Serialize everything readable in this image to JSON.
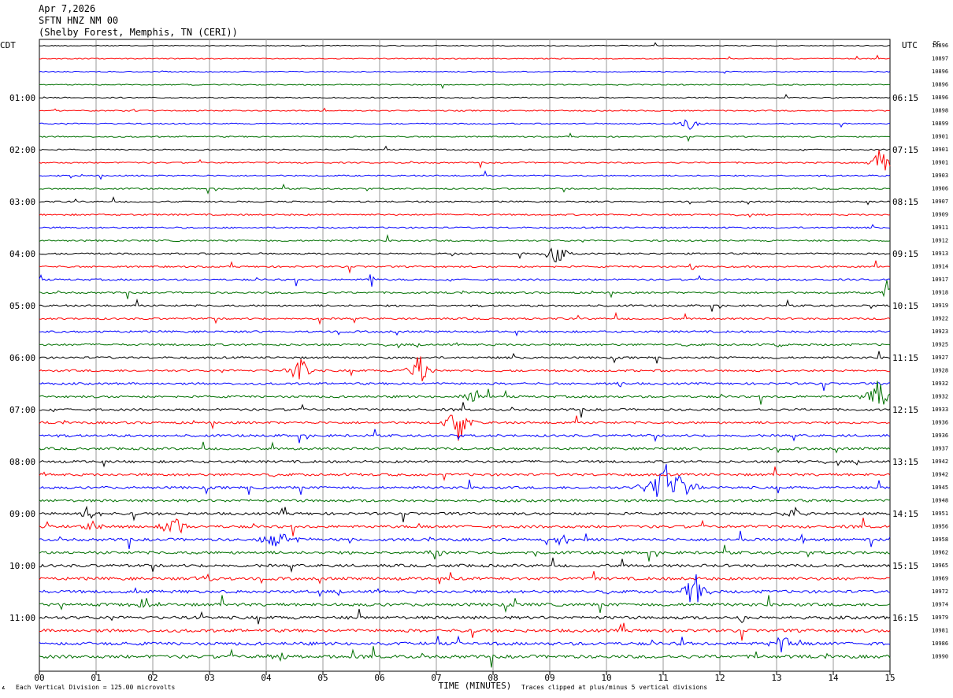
{
  "header": {
    "date": "Apr 7,2026",
    "station": "SFTN HNZ NM 00",
    "location": "(Shelby Forest, Memphis, TN (CERI))"
  },
  "chart_data": {
    "type": "line",
    "title": "SFTN HNZ NM 00",
    "left_axis_label": "CDT",
    "right_axis_label": "UTC",
    "dc_label": "DC",
    "xlabel": "TIME (MINUTES)",
    "xlim": [
      0,
      15
    ],
    "x_ticks": [
      "00",
      "01",
      "02",
      "03",
      "04",
      "05",
      "06",
      "07",
      "08",
      "09",
      "10",
      "11",
      "12",
      "13",
      "14",
      "15"
    ],
    "trace_minutes": 15,
    "trace_colors": [
      "#000000",
      "#ff0000",
      "#0000ff",
      "#007000"
    ],
    "left_time_labels": [
      {
        "row": 4,
        "label": "01:00"
      },
      {
        "row": 8,
        "label": "02:00"
      },
      {
        "row": 12,
        "label": "03:00"
      },
      {
        "row": 16,
        "label": "04:00"
      },
      {
        "row": 20,
        "label": "05:00"
      },
      {
        "row": 24,
        "label": "06:00"
      },
      {
        "row": 28,
        "label": "07:00"
      },
      {
        "row": 32,
        "label": "08:00"
      },
      {
        "row": 36,
        "label": "09:00"
      },
      {
        "row": 40,
        "label": "10:00"
      },
      {
        "row": 44,
        "label": "11:00"
      }
    ],
    "right_time_labels": [
      {
        "row": 4,
        "label": "06:15"
      },
      {
        "row": 8,
        "label": "07:15"
      },
      {
        "row": 12,
        "label": "08:15"
      },
      {
        "row": 16,
        "label": "09:15"
      },
      {
        "row": 20,
        "label": "10:15"
      },
      {
        "row": 24,
        "label": "11:15"
      },
      {
        "row": 28,
        "label": "12:15"
      },
      {
        "row": 32,
        "label": "13:15"
      },
      {
        "row": 36,
        "label": "14:15"
      },
      {
        "row": 40,
        "label": "15:15"
      },
      {
        "row": 44,
        "label": "16:15"
      }
    ],
    "dc_offsets": [
      "10896",
      "10897",
      "10896",
      "10896",
      "10896",
      "10898",
      "10899",
      "10901",
      "10901",
      "10901",
      "10903",
      "10906",
      "10907",
      "10909",
      "10911",
      "10912",
      "10913",
      "10914",
      "10917",
      "10918",
      "10919",
      "10922",
      "10923",
      "10925",
      "10927",
      "10928",
      "10932",
      "10932",
      "10933",
      "10936",
      "10936",
      "10937",
      "10942",
      "10942",
      "10945",
      "10948",
      "10951",
      "10956",
      "10958",
      "10962",
      "10965",
      "10969",
      "10972",
      "10974",
      "10979",
      "10981",
      "10986",
      "10990"
    ],
    "events": [
      {
        "row": 6,
        "minute": 11.45,
        "amp": 10,
        "dur": 0.35
      },
      {
        "row": 9,
        "minute": 14.85,
        "amp": 30,
        "dur": 0.25
      },
      {
        "row": 16,
        "minute": 9.1,
        "amp": 22,
        "dur": 0.3
      },
      {
        "row": 16,
        "minute": 7.3,
        "amp": 8,
        "dur": 0.1
      },
      {
        "row": 17,
        "minute": 11.5,
        "amp": 10,
        "dur": 0.1
      },
      {
        "row": 18,
        "minute": 5.85,
        "amp": 14,
        "dur": 0.1
      },
      {
        "row": 19,
        "minute": 14.95,
        "amp": 20,
        "dur": 0.15
      },
      {
        "row": 23,
        "minute": 13.05,
        "amp": 10,
        "dur": 0.1
      },
      {
        "row": 25,
        "minute": 4.6,
        "amp": 25,
        "dur": 0.3
      },
      {
        "row": 25,
        "minute": 6.7,
        "amp": 30,
        "dur": 0.3
      },
      {
        "row": 26,
        "minute": 10.25,
        "amp": 14,
        "dur": 0.1
      },
      {
        "row": 27,
        "minute": 7.6,
        "amp": 14,
        "dur": 0.25
      },
      {
        "row": 27,
        "minute": 14.8,
        "amp": 26,
        "dur": 0.35
      },
      {
        "row": 29,
        "minute": 7.4,
        "amp": 30,
        "dur": 0.35
      },
      {
        "row": 34,
        "minute": 11.1,
        "amp": 38,
        "dur": 0.6
      },
      {
        "row": 36,
        "minute": 0.85,
        "amp": 16,
        "dur": 0.25
      },
      {
        "row": 36,
        "minute": 13.3,
        "amp": 8,
        "dur": 0.35
      },
      {
        "row": 37,
        "minute": 2.35,
        "amp": 24,
        "dur": 0.35
      },
      {
        "row": 37,
        "minute": 1.0,
        "amp": 8,
        "dur": 0.4
      },
      {
        "row": 38,
        "minute": 4.2,
        "amp": 12,
        "dur": 0.6
      },
      {
        "row": 38,
        "minute": 9.2,
        "amp": 10,
        "dur": 0.3
      },
      {
        "row": 39,
        "minute": 7.0,
        "amp": 12,
        "dur": 0.3
      },
      {
        "row": 41,
        "minute": 2.95,
        "amp": 10,
        "dur": 0.25
      },
      {
        "row": 42,
        "minute": 11.55,
        "amp": 32,
        "dur": 0.3
      },
      {
        "row": 43,
        "minute": 1.85,
        "amp": 14,
        "dur": 0.3
      },
      {
        "row": 44,
        "minute": 12.4,
        "amp": 10,
        "dur": 0.15
      },
      {
        "row": 46,
        "minute": 13.1,
        "amp": 18,
        "dur": 0.3
      },
      {
        "row": 47,
        "minute": 4.2,
        "amp": 10,
        "dur": 0.3
      }
    ]
  },
  "footer": {
    "scale_note": "Each Vertical Division =  125.00 microvolts",
    "clip_note": "Traces clipped at plus/minus 5 vertical divisions"
  }
}
